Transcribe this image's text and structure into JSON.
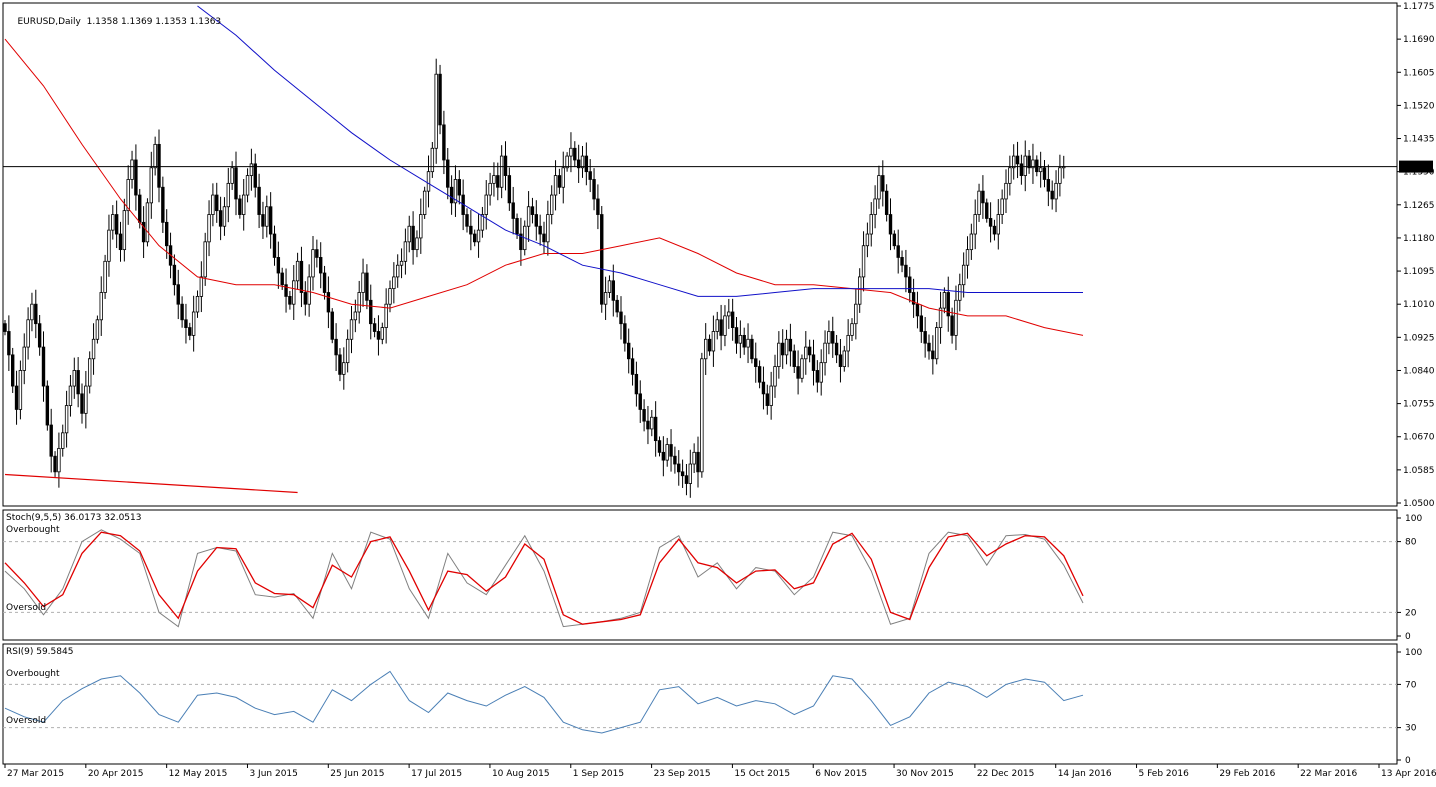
{
  "colors": {
    "background": "#ffffff",
    "candle": "#000000",
    "ma_fast": "#e00000",
    "ma_slow": "#1010c8",
    "stoch_main": "#808080",
    "stoch_signal": "#e00000",
    "rsi": "#4a7fb5",
    "price_tag_bg": "#000000",
    "price_tag_fg": "#ffffff"
  },
  "header": {
    "symbol_label": "EURUSD,Daily",
    "ohlc_label": "1.1358 1.1369 1.1353 1.1363"
  },
  "current_price_label": "1.1363",
  "stoch_header": "Stoch(9,5,5) 36.0173 32.0513",
  "rsi_header": "RSI(9) 59.5845",
  "labels": {
    "overbought": "Overbought",
    "oversold": "Oversold"
  },
  "chart_data": [
    {
      "type": "candlestick",
      "title": "EURUSD,Daily",
      "ylim": [
        1.05,
        1.1775
      ],
      "y_ticks": [
        "1.1775",
        "1.1690",
        "1.1605",
        "1.1520",
        "1.1435",
        "1.1350",
        "1.1265",
        "1.1180",
        "1.1095",
        "1.1010",
        "1.0925",
        "1.0840",
        "1.0755",
        "1.0670",
        "1.0585",
        "1.0500"
      ],
      "x_ticks": [
        "27 Mar 2015",
        "20 Apr 2015",
        "12 May 2015",
        "3 Jun 2015",
        "25 Jun 2015",
        "17 Jul 2015",
        "10 Aug 2015",
        "1 Sep 2015",
        "23 Sep 2015",
        "15 Oct 2015",
        "6 Nov 2015",
        "30 Nov 2015",
        "22 Dec 2015",
        "14 Jan 2016",
        "5 Feb 2016",
        "29 Feb 2016",
        "22 Mar 2016",
        "13 Apr 2016"
      ],
      "current_price": 1.1363,
      "closes": [
        1.094,
        1.088,
        1.08,
        1.074,
        1.084,
        1.09,
        1.097,
        1.101,
        1.096,
        1.09,
        1.08,
        1.07,
        1.062,
        1.058,
        1.064,
        1.068,
        1.075,
        1.08,
        1.084,
        1.078,
        1.073,
        1.08,
        1.087,
        1.092,
        1.097,
        1.104,
        1.112,
        1.12,
        1.124,
        1.119,
        1.115,
        1.125,
        1.133,
        1.138,
        1.129,
        1.122,
        1.117,
        1.127,
        1.136,
        1.142,
        1.131,
        1.122,
        1.116,
        1.111,
        1.106,
        1.101,
        1.097,
        1.095,
        1.093,
        1.099,
        1.103,
        1.108,
        1.117,
        1.124,
        1.129,
        1.125,
        1.121,
        1.126,
        1.132,
        1.136,
        1.128,
        1.124,
        1.129,
        1.134,
        1.137,
        1.131,
        1.124,
        1.121,
        1.126,
        1.119,
        1.113,
        1.109,
        1.106,
        1.103,
        1.101,
        1.107,
        1.112,
        1.104,
        1.101,
        1.108,
        1.115,
        1.113,
        1.109,
        1.104,
        1.099,
        1.092,
        1.088,
        1.083,
        1.086,
        1.092,
        1.097,
        1.099,
        1.104,
        1.109,
        1.102,
        1.096,
        1.094,
        1.092,
        1.095,
        1.101,
        1.105,
        1.108,
        1.111,
        1.112,
        1.117,
        1.121,
        1.115,
        1.118,
        1.124,
        1.13,
        1.135,
        1.141,
        1.16,
        1.147,
        1.138,
        1.131,
        1.127,
        1.133,
        1.129,
        1.124,
        1.121,
        1.119,
        1.117,
        1.12,
        1.124,
        1.129,
        1.132,
        1.134,
        1.131,
        1.139,
        1.134,
        1.127,
        1.123,
        1.119,
        1.115,
        1.121,
        1.126,
        1.124,
        1.121,
        1.119,
        1.117,
        1.124,
        1.129,
        1.134,
        1.131,
        1.136,
        1.139,
        1.141,
        1.138,
        1.136,
        1.139,
        1.135,
        1.133,
        1.128,
        1.124,
        1.101,
        1.104,
        1.107,
        1.102,
        1.099,
        1.096,
        1.091,
        1.087,
        1.083,
        1.078,
        1.074,
        1.071,
        1.069,
        1.072,
        1.066,
        1.063,
        1.061,
        1.065,
        1.062,
        1.06,
        1.058,
        1.057,
        1.055,
        1.06,
        1.063,
        1.058,
        1.087,
        1.092,
        1.089,
        1.094,
        1.097,
        1.093,
        1.098,
        1.099,
        1.095,
        1.091,
        1.093,
        1.09,
        1.092,
        1.087,
        1.085,
        1.081,
        1.078,
        1.075,
        1.08,
        1.085,
        1.091,
        1.088,
        1.092,
        1.089,
        1.085,
        1.082,
        1.087,
        1.09,
        1.088,
        1.084,
        1.081,
        1.086,
        1.091,
        1.094,
        1.091,
        1.088,
        1.085,
        1.089,
        1.093,
        1.096,
        1.101,
        1.108,
        1.116,
        1.119,
        1.124,
        1.128,
        1.134,
        1.13,
        1.124,
        1.119,
        1.116,
        1.113,
        1.111,
        1.108,
        1.104,
        1.101,
        1.098,
        1.094,
        1.091,
        1.089,
        1.087,
        1.095,
        1.1,
        1.104,
        1.098,
        1.093,
        1.102,
        1.106,
        1.111,
        1.115,
        1.119,
        1.124,
        1.13,
        1.127,
        1.123,
        1.121,
        1.119,
        1.124,
        1.128,
        1.132,
        1.136,
        1.139,
        1.137,
        1.134,
        1.139,
        1.136,
        1.138,
        1.135,
        1.136,
        1.133,
        1.13,
        1.128,
        1.132,
        1.136,
        1.1363
      ],
      "ma_fast_series": {
        "name": "",
        "x_index": [
          0,
          10,
          20,
          30,
          40,
          50,
          60,
          70,
          80,
          90,
          100,
          110,
          120,
          130,
          140,
          150,
          160,
          170,
          180,
          190,
          200,
          210,
          220,
          230,
          240,
          250,
          260,
          270,
          280
        ],
        "values": [
          1.169,
          1.157,
          1.142,
          1.128,
          1.116,
          1.108,
          1.106,
          1.106,
          1.104,
          1.101,
          1.1,
          1.103,
          1.106,
          1.111,
          1.114,
          1.114,
          1.116,
          1.118,
          1.114,
          1.109,
          1.106,
          1.106,
          1.105,
          1.104,
          1.1,
          1.098,
          1.098,
          1.095,
          1.093
        ]
      },
      "ma_slow_series": {
        "name": "",
        "x_index": [
          50,
          60,
          70,
          80,
          90,
          100,
          110,
          120,
          130,
          140,
          150,
          160,
          170,
          180,
          190,
          200,
          210,
          220,
          230,
          240,
          250,
          260,
          270,
          280
        ],
        "values": [
          1.1775,
          1.17,
          1.161,
          1.153,
          1.145,
          1.138,
          1.132,
          1.126,
          1.12,
          1.116,
          1.111,
          1.109,
          1.106,
          1.103,
          1.103,
          1.104,
          1.105,
          1.105,
          1.105,
          1.105,
          1.104,
          1.104,
          1.104,
          1.104
        ]
      },
      "trendline": {
        "x_index": [
          0,
          76
        ],
        "values": [
          1.0573,
          1.0527
        ]
      }
    },
    {
      "type": "line",
      "title": "Stoch(9,5,5) 36.0173 32.0513",
      "ylim": [
        0,
        100
      ],
      "y_ticks": [
        "100",
        "80",
        "20",
        "0"
      ],
      "levels": [
        80,
        20
      ],
      "series": [
        {
          "name": "",
          "x_index": [
            0,
            5,
            10,
            15,
            20,
            25,
            30,
            35,
            40,
            45,
            50,
            55,
            60,
            65,
            70,
            75,
            80,
            85,
            90,
            95,
            100,
            105,
            110,
            115,
            120,
            125,
            130,
            135,
            140,
            145,
            150,
            155,
            160,
            165,
            170,
            175,
            180,
            185,
            190,
            195,
            200,
            205,
            210,
            215,
            220,
            225,
            230,
            235,
            240,
            245,
            250,
            255,
            260,
            265,
            270,
            275,
            280
          ],
          "values": [
            55,
            40,
            18,
            40,
            80,
            90,
            82,
            70,
            20,
            8,
            70,
            75,
            72,
            35,
            33,
            36,
            15,
            70,
            40,
            88,
            82,
            40,
            15,
            70,
            45,
            35,
            60,
            85,
            55,
            8,
            10,
            12,
            15,
            20,
            75,
            85,
            50,
            62,
            40,
            58,
            55,
            35,
            50,
            88,
            85,
            55,
            10,
            15,
            70,
            88,
            85,
            60,
            85,
            86,
            82,
            60,
            28
          ]
        },
        {
          "name": "",
          "x_index": [
            0,
            5,
            10,
            15,
            20,
            25,
            30,
            35,
            40,
            45,
            50,
            55,
            60,
            65,
            70,
            75,
            80,
            85,
            90,
            95,
            100,
            105,
            110,
            115,
            120,
            125,
            130,
            135,
            140,
            145,
            150,
            155,
            160,
            165,
            170,
            175,
            180,
            185,
            190,
            195,
            200,
            205,
            210,
            215,
            220,
            225,
            230,
            235,
            240,
            245,
            250,
            255,
            260,
            265,
            270,
            275,
            280
          ],
          "values": [
            62,
            45,
            25,
            35,
            70,
            88,
            85,
            72,
            35,
            15,
            55,
            75,
            74,
            45,
            36,
            35,
            24,
            60,
            50,
            80,
            84,
            55,
            22,
            55,
            52,
            38,
            50,
            78,
            65,
            18,
            10,
            12,
            14,
            18,
            62,
            82,
            62,
            58,
            45,
            55,
            56,
            40,
            45,
            78,
            87,
            65,
            20,
            14,
            58,
            84,
            87,
            68,
            78,
            85,
            84,
            68,
            34
          ]
        }
      ]
    },
    {
      "type": "line",
      "title": "RSI(9) 59.5845",
      "ylim": [
        0,
        100
      ],
      "y_ticks": [
        "100",
        "70",
        "30",
        "0"
      ],
      "levels": [
        70,
        30
      ],
      "series": [
        {
          "name": "",
          "x_index": [
            0,
            5,
            10,
            15,
            20,
            25,
            30,
            35,
            40,
            45,
            50,
            55,
            60,
            65,
            70,
            75,
            80,
            85,
            90,
            95,
            100,
            105,
            110,
            115,
            120,
            125,
            130,
            135,
            140,
            145,
            150,
            155,
            160,
            165,
            170,
            175,
            180,
            185,
            190,
            195,
            200,
            205,
            210,
            215,
            220,
            225,
            230,
            235,
            240,
            245,
            250,
            255,
            260,
            265,
            270,
            275,
            280
          ],
          "values": [
            48,
            40,
            35,
            55,
            66,
            75,
            78,
            62,
            42,
            35,
            60,
            62,
            58,
            48,
            42,
            45,
            35,
            65,
            55,
            70,
            82,
            55,
            44,
            62,
            55,
            50,
            60,
            68,
            58,
            35,
            28,
            25,
            30,
            35,
            65,
            68,
            52,
            58,
            50,
            55,
            52,
            42,
            50,
            78,
            75,
            55,
            32,
            40,
            62,
            72,
            68,
            58,
            70,
            75,
            72,
            55,
            60
          ]
        }
      ]
    }
  ]
}
